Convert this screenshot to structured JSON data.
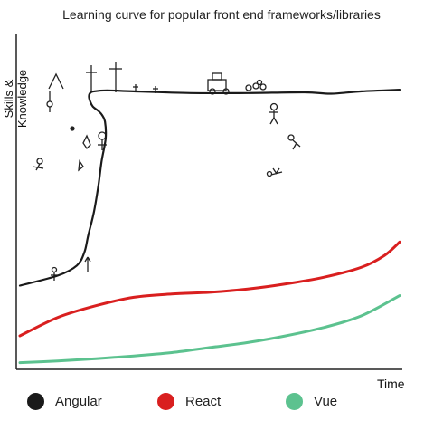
{
  "chart_data": {
    "type": "line",
    "title": "Learning curve for popular front end frameworks/libraries",
    "xlabel": "Time",
    "ylabel": "Skills & Knowledge",
    "xlim": [
      0,
      100
    ],
    "ylim": [
      0,
      100
    ],
    "grid": false,
    "legend_position": "bottom",
    "series": [
      {
        "name": "Angular",
        "color": "#1a1a1a",
        "x": [
          0,
          10,
          15,
          17,
          18,
          19.5,
          20.7,
          21.5,
          22.6,
          22.4,
          21.6,
          20.8,
          19.2,
          18.5,
          18.2,
          18.5,
          19.5,
          23,
          30,
          45,
          60,
          75,
          82,
          90,
          100
        ],
        "y": [
          25,
          28,
          31,
          35,
          40,
          47,
          55,
          62,
          69,
          74,
          76,
          77,
          78.5,
          80,
          81.5,
          82.5,
          83,
          83.3,
          83,
          82.5,
          82.5,
          82.7,
          82.3,
          83,
          83.5
        ]
      },
      {
        "name": "React",
        "color": "#d91f1f",
        "x": [
          0,
          10,
          20,
          30,
          40,
          50,
          60,
          70,
          80,
          90,
          96,
          100
        ],
        "y": [
          10,
          15.5,
          19,
          21.5,
          22.5,
          23,
          24,
          25.5,
          27.5,
          30.5,
          34,
          38
        ]
      },
      {
        "name": "Vue",
        "color": "#5cc28f",
        "x": [
          0,
          10,
          20,
          30,
          40,
          50,
          60,
          70,
          80,
          90,
          100
        ],
        "y": [
          2,
          2.5,
          3.2,
          4,
          5,
          6.5,
          8,
          10,
          12.5,
          16,
          22
        ]
      }
    ]
  }
}
